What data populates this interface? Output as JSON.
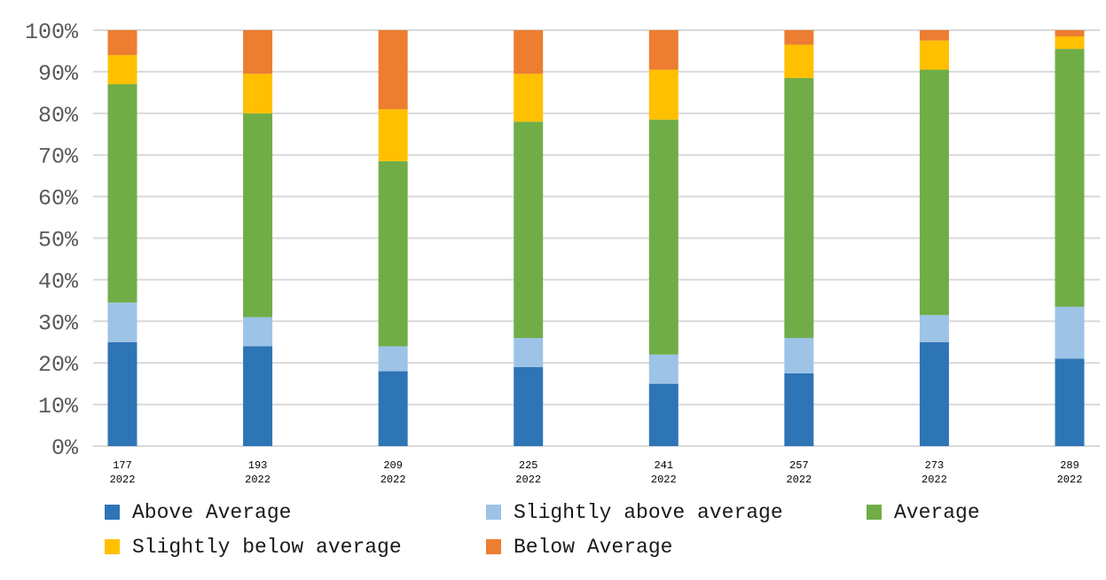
{
  "chart_data": {
    "type": "bar",
    "stacked": true,
    "percent_stacked": true,
    "categories": [
      [
        "177",
        "2022"
      ],
      [
        "193",
        "2022"
      ],
      [
        "209",
        "2022"
      ],
      [
        "225",
        "2022"
      ],
      [
        "241",
        "2022"
      ],
      [
        "257",
        "2022"
      ],
      [
        "273",
        "2022"
      ],
      [
        "289",
        "2022"
      ]
    ],
    "series": [
      {
        "name": "Above Average",
        "color": "#2e75b6",
        "values": [
          25,
          24,
          18,
          19,
          15,
          17.5,
          25,
          21
        ]
      },
      {
        "name": "Slightly above average",
        "color": "#9dc3e6",
        "values": [
          9.5,
          7,
          6,
          7,
          7,
          8.5,
          6.5,
          12.5
        ]
      },
      {
        "name": "Average",
        "color": "#70ad47",
        "values": [
          52.5,
          49,
          44.5,
          52,
          56.5,
          62.5,
          59,
          62
        ]
      },
      {
        "name": "Slightly below average",
        "color": "#ffc000",
        "values": [
          7,
          9.5,
          12.5,
          11.5,
          12,
          8,
          7,
          3
        ]
      },
      {
        "name": "Below Average",
        "color": "#ed7d31",
        "values": [
          6,
          10.5,
          19,
          10.5,
          9.5,
          3.5,
          2.5,
          1.5
        ]
      }
    ],
    "y_ticks": [
      "0%",
      "10%",
      "20%",
      "30%",
      "40%",
      "50%",
      "60%",
      "70%",
      "80%",
      "90%",
      "100%"
    ],
    "ylim": [
      0,
      100
    ],
    "grid": true,
    "legend_position": "bottom"
  }
}
